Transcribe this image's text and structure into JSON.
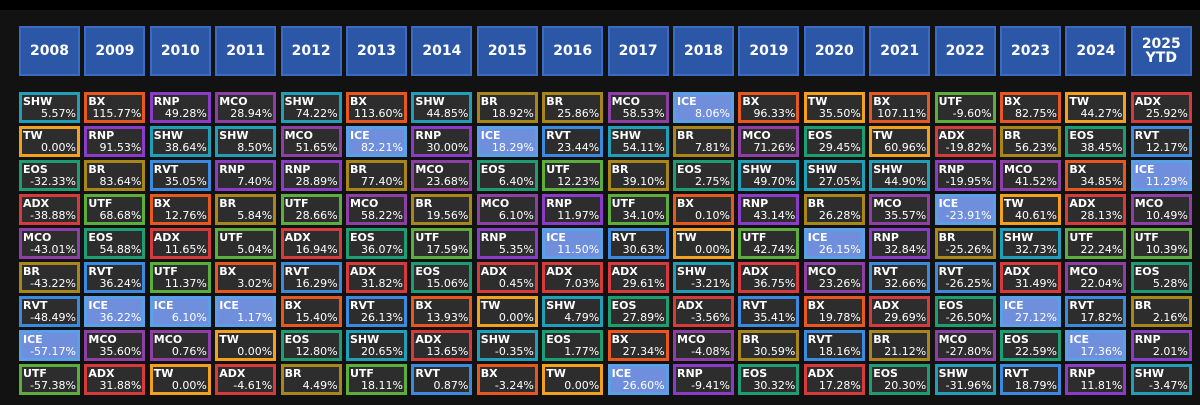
{
  "chart_data": {
    "type": "table",
    "years": [
      "2008",
      "2009",
      "2010",
      "2011",
      "2012",
      "2013",
      "2014",
      "2015",
      "2016",
      "2017",
      "2018",
      "2019",
      "2020",
      "2021",
      "2022",
      "2023",
      "2024",
      "2025\nYTD"
    ],
    "ticker_colors": {
      "SHW": "#1fa0b8",
      "BX": "#e8571e",
      "RNP": "#8a3cc8",
      "MCO": "#8d3fa6",
      "BR": "#a8861a",
      "ICE": "#5aa0e6",
      "TW": "#f2a01e",
      "UTF": "#5cae3c",
      "ADX": "#d63a3a",
      "EOS": "#1d9e72",
      "RVT": "#3a8be0"
    },
    "columns": [
      [
        [
          "SHW",
          "5.57%"
        ],
        [
          "TW",
          "0.00%"
        ],
        [
          "EOS",
          "-32.33%"
        ],
        [
          "ADX",
          "-38.88%"
        ],
        [
          "MCO",
          "-43.01%"
        ],
        [
          "BR",
          "-43.22%"
        ],
        [
          "RVT",
          "-48.49%"
        ],
        [
          "ICE",
          "-57.17%"
        ],
        [
          "UTF",
          "-57.38%"
        ]
      ],
      [
        [
          "BX",
          "115.77%"
        ],
        [
          "RNP",
          "91.53%"
        ],
        [
          "BR",
          "83.64%"
        ],
        [
          "UTF",
          "68.68%"
        ],
        [
          "EOS",
          "54.88%"
        ],
        [
          "RVT",
          "36.24%"
        ],
        [
          "ICE",
          "36.22%"
        ],
        [
          "MCO",
          "35.60%"
        ],
        [
          "ADX",
          "31.88%"
        ]
      ],
      [
        [
          "RNP",
          "49.28%"
        ],
        [
          "SHW",
          "38.64%"
        ],
        [
          "RVT",
          "35.05%"
        ],
        [
          "BX",
          "12.76%"
        ],
        [
          "ADX",
          "11.65%"
        ],
        [
          "UTF",
          "11.37%"
        ],
        [
          "ICE",
          "6.10%"
        ],
        [
          "MCO",
          "0.76%"
        ],
        [
          "TW",
          "0.00%"
        ]
      ],
      [
        [
          "MCO",
          "28.94%"
        ],
        [
          "SHW",
          "8.50%"
        ],
        [
          "RNP",
          "7.40%"
        ],
        [
          "BR",
          "5.84%"
        ],
        [
          "UTF",
          "5.04%"
        ],
        [
          "BX",
          "3.02%"
        ],
        [
          "ICE",
          "1.17%"
        ],
        [
          "TW",
          "0.00%"
        ],
        [
          "ADX",
          "-4.61%"
        ]
      ],
      [
        [
          "SHW",
          "74.22%"
        ],
        [
          "MCO",
          "51.65%"
        ],
        [
          "RNP",
          "28.89%"
        ],
        [
          "UTF",
          "28.66%"
        ],
        [
          "ADX",
          "16.94%"
        ],
        [
          "RVT",
          "16.29%"
        ],
        [
          "BX",
          "15.40%"
        ],
        [
          "EOS",
          "12.80%"
        ],
        [
          "BR",
          "4.49%"
        ]
      ],
      [
        [
          "BX",
          "113.60%"
        ],
        [
          "ICE",
          "82.21%"
        ],
        [
          "BR",
          "77.40%"
        ],
        [
          "MCO",
          "58.22%"
        ],
        [
          "EOS",
          "36.07%"
        ],
        [
          "ADX",
          "31.82%"
        ],
        [
          "RVT",
          "26.13%"
        ],
        [
          "SHW",
          "20.65%"
        ],
        [
          "UTF",
          "18.11%"
        ]
      ],
      [
        [
          "SHW",
          "44.85%"
        ],
        [
          "RNP",
          "30.00%"
        ],
        [
          "MCO",
          "23.68%"
        ],
        [
          "BR",
          "19.56%"
        ],
        [
          "UTF",
          "17.59%"
        ],
        [
          "EOS",
          "15.06%"
        ],
        [
          "BX",
          "13.93%"
        ],
        [
          "ADX",
          "13.65%"
        ],
        [
          "RVT",
          "0.87%"
        ]
      ],
      [
        [
          "BR",
          "18.92%"
        ],
        [
          "ICE",
          "18.29%"
        ],
        [
          "EOS",
          "6.40%"
        ],
        [
          "MCO",
          "6.10%"
        ],
        [
          "RNP",
          "5.35%"
        ],
        [
          "ADX",
          "0.45%"
        ],
        [
          "TW",
          "0.00%"
        ],
        [
          "SHW",
          "-0.35%"
        ],
        [
          "BX",
          "-3.24%"
        ]
      ],
      [
        [
          "BR",
          "25.86%"
        ],
        [
          "RVT",
          "23.44%"
        ],
        [
          "UTF",
          "12.23%"
        ],
        [
          "RNP",
          "11.97%"
        ],
        [
          "ICE",
          "11.50%"
        ],
        [
          "ADX",
          "7.03%"
        ],
        [
          "SHW",
          "4.79%"
        ],
        [
          "EOS",
          "1.77%"
        ],
        [
          "TW",
          "0.00%"
        ]
      ],
      [
        [
          "MCO",
          "58.53%"
        ],
        [
          "SHW",
          "54.11%"
        ],
        [
          "BR",
          "39.10%"
        ],
        [
          "UTF",
          "34.10%"
        ],
        [
          "RVT",
          "30.63%"
        ],
        [
          "ADX",
          "29.61%"
        ],
        [
          "EOS",
          "27.89%"
        ],
        [
          "BX",
          "27.34%"
        ],
        [
          "ICE",
          "26.60%"
        ]
      ],
      [
        [
          "ICE",
          "8.06%"
        ],
        [
          "BR",
          "7.81%"
        ],
        [
          "EOS",
          "2.75%"
        ],
        [
          "BX",
          "0.10%"
        ],
        [
          "TW",
          "0.00%"
        ],
        [
          "SHW",
          "-3.21%"
        ],
        [
          "ADX",
          "-3.56%"
        ],
        [
          "MCO",
          "-4.08%"
        ],
        [
          "RNP",
          "-9.41%"
        ]
      ],
      [
        [
          "BX",
          "96.33%"
        ],
        [
          "MCO",
          "71.26%"
        ],
        [
          "SHW",
          "49.70%"
        ],
        [
          "RNP",
          "43.14%"
        ],
        [
          "UTF",
          "42.74%"
        ],
        [
          "ADX",
          "36.75%"
        ],
        [
          "RVT",
          "35.41%"
        ],
        [
          "BR",
          "30.59%"
        ],
        [
          "EOS",
          "30.32%"
        ]
      ],
      [
        [
          "TW",
          "35.50%"
        ],
        [
          "EOS",
          "29.45%"
        ],
        [
          "SHW",
          "27.05%"
        ],
        [
          "BR",
          "26.28%"
        ],
        [
          "ICE",
          "26.15%"
        ],
        [
          "MCO",
          "23.26%"
        ],
        [
          "BX",
          "19.78%"
        ],
        [
          "RVT",
          "18.16%"
        ],
        [
          "ADX",
          "17.28%"
        ]
      ],
      [
        [
          "BX",
          "107.11%"
        ],
        [
          "TW",
          "60.96%"
        ],
        [
          "SHW",
          "44.90%"
        ],
        [
          "MCO",
          "35.57%"
        ],
        [
          "RNP",
          "32.84%"
        ],
        [
          "RVT",
          "32.66%"
        ],
        [
          "ADX",
          "29.69%"
        ],
        [
          "BR",
          "21.12%"
        ],
        [
          "EOS",
          "20.30%"
        ]
      ],
      [
        [
          "UTF",
          "-9.60%"
        ],
        [
          "ADX",
          "-19.82%"
        ],
        [
          "RNP",
          "-19.95%"
        ],
        [
          "ICE",
          "-23.91%"
        ],
        [
          "BR",
          "-25.26%"
        ],
        [
          "RVT",
          "-26.25%"
        ],
        [
          "EOS",
          "-26.50%"
        ],
        [
          "MCO",
          "-27.80%"
        ],
        [
          "SHW",
          "-31.96%"
        ]
      ],
      [
        [
          "BX",
          "82.75%"
        ],
        [
          "BR",
          "56.23%"
        ],
        [
          "MCO",
          "41.52%"
        ],
        [
          "TW",
          "40.61%"
        ],
        [
          "SHW",
          "32.73%"
        ],
        [
          "ADX",
          "31.49%"
        ],
        [
          "ICE",
          "27.12%"
        ],
        [
          "EOS",
          "22.59%"
        ],
        [
          "RVT",
          "18.79%"
        ]
      ],
      [
        [
          "TW",
          "44.27%"
        ],
        [
          "EOS",
          "38.45%"
        ],
        [
          "BX",
          "34.85%"
        ],
        [
          "ADX",
          "28.13%"
        ],
        [
          "UTF",
          "22.24%"
        ],
        [
          "MCO",
          "22.04%"
        ],
        [
          "RVT",
          "17.82%"
        ],
        [
          "ICE",
          "17.36%"
        ],
        [
          "RNP",
          "11.81%"
        ]
      ],
      [
        [
          "ADX",
          "25.92%"
        ],
        [
          "RVT",
          "12.17%"
        ],
        [
          "ICE",
          "11.29%"
        ],
        [
          "MCO",
          "10.49%"
        ],
        [
          "UTF",
          "10.39%"
        ],
        [
          "EOS",
          "5.28%"
        ],
        [
          "BR",
          "2.16%"
        ],
        [
          "RNP",
          "2.01%"
        ],
        [
          "SHW",
          "-3.47%"
        ]
      ]
    ]
  }
}
